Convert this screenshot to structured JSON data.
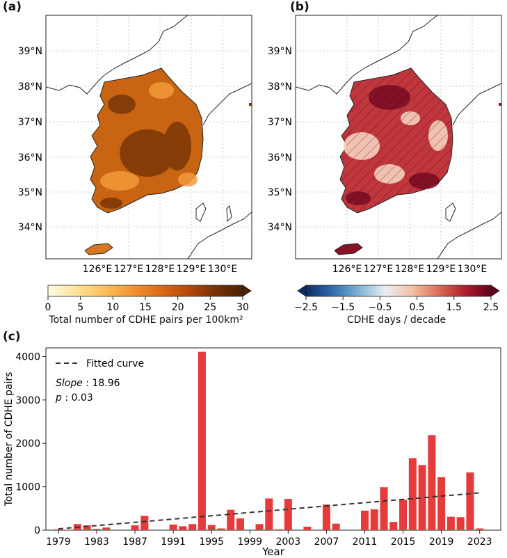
{
  "panels": {
    "a": {
      "label": "(a)"
    },
    "b": {
      "label": "(b)"
    },
    "c": {
      "label": "(c)"
    }
  },
  "maps": {
    "lat_labels": [
      "39°N",
      "38°N",
      "37°N",
      "36°N",
      "35°N",
      "34°N"
    ],
    "lon_labels": [
      "126°E",
      "127°E",
      "128°E",
      "129°E",
      "130°E"
    ]
  },
  "colorbars": {
    "a": {
      "ticks": [
        "0",
        "5",
        "10",
        "15",
        "20",
        "25",
        "30"
      ],
      "label": "Total number of CDHE pairs per 100km²",
      "colors": [
        "#fffbe0",
        "#fde39a",
        "#fbc05c",
        "#f29632",
        "#df6b14",
        "#b94a0a",
        "#7a3206",
        "#4a2104"
      ]
    },
    "b": {
      "ticks": [
        "−2.5",
        "−1.5",
        "−0.5",
        "0.5",
        "1.5",
        "2.5"
      ],
      "label": "CDHE days / decade",
      "colors": [
        "#0c2c63",
        "#2f6bad",
        "#7eb3d6",
        "#e9eef2",
        "#f5c3a6",
        "#dc6e57",
        "#b01d2c",
        "#62001f"
      ]
    }
  },
  "chart_data": {
    "type": "bar",
    "xlabel": "Year",
    "ylabel": "Total number of CDHE pairs",
    "ylim": [
      0,
      4200
    ],
    "yticks": [
      0,
      1000,
      2000,
      3000,
      4000
    ],
    "xticks": [
      1979,
      1983,
      1987,
      1991,
      1995,
      1999,
      2003,
      2007,
      2011,
      2015,
      2019,
      2023
    ],
    "x": [
      1979,
      1980,
      1981,
      1982,
      1983,
      1984,
      1985,
      1986,
      1987,
      1988,
      1989,
      1990,
      1991,
      1992,
      1993,
      1994,
      1995,
      1996,
      1997,
      1998,
      1999,
      2000,
      2001,
      2002,
      2003,
      2004,
      2005,
      2006,
      2007,
      2008,
      2009,
      2010,
      2011,
      2012,
      2013,
      2014,
      2015,
      2016,
      2017,
      2018,
      2019,
      2020,
      2021,
      2022,
      2023
    ],
    "values": [
      20,
      10,
      140,
      110,
      30,
      60,
      0,
      0,
      110,
      330,
      0,
      0,
      130,
      90,
      140,
      4110,
      120,
      40,
      470,
      270,
      0,
      140,
      730,
      20,
      720,
      0,
      80,
      0,
      590,
      150,
      0,
      0,
      450,
      480,
      990,
      190,
      700,
      1660,
      1500,
      2190,
      1220,
      310,
      300,
      1330,
      40
    ],
    "bar_color": "#e63b3b",
    "trend": {
      "legend_label": "Fitted curve",
      "slope_label": "Slope",
      "slope_value": " : 18.96",
      "p_label": "p",
      "p_value": " : 0.03",
      "start": [
        1979,
        30
      ],
      "end": [
        2023,
        860
      ],
      "color": "#333333"
    }
  }
}
